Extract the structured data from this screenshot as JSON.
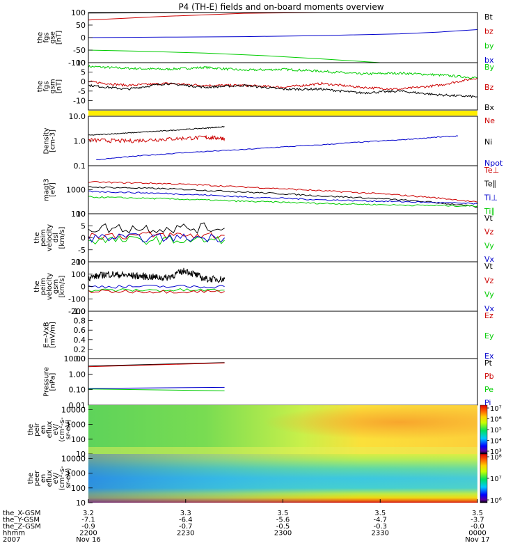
{
  "title": "P4 (TH-E) fields and on-board moments overview",
  "chart_data": {
    "type": "line",
    "title": "P4 (TH-E) fields and on-board moments overview",
    "xaxis": {
      "rows": [
        {
          "label": "the_X-GSM",
          "values": [
            "3.2",
            "3.3",
            "3.5",
            "3.5",
            "3.5"
          ]
        },
        {
          "label": "the_Y-GSM",
          "values": [
            "-7.1",
            "-6.4",
            "-5.6",
            "-4.7",
            "-3.7"
          ]
        },
        {
          "label": "the_Z-GSM",
          "values": [
            "-0.9",
            "-0.7",
            "-0.5",
            "-0.3",
            "-0.0"
          ]
        },
        {
          "label": "hhmm",
          "values": [
            "2200",
            "2230",
            "2300",
            "2330",
            "0000"
          ]
        },
        {
          "label": "2007",
          "values": [
            "Nov 16",
            "",
            "",
            "",
            "Nov 17"
          ]
        }
      ]
    },
    "panels": [
      {
        "id": "fgs_gse",
        "ylabel": [
          "the",
          "fgs",
          "gse",
          "[nT]"
        ],
        "scale": "linear",
        "ylim": [
          -100,
          100
        ],
        "ticks": [
          "100",
          "50",
          "0",
          "-50",
          "-100"
        ],
        "legend": [
          {
            "name": "Bt",
            "color": "#000000"
          },
          {
            "name": "bz",
            "color": "#cc0000"
          },
          {
            "name": "by",
            "color": "#00cc00"
          },
          {
            "name": "bx",
            "color": "#0000cc"
          }
        ],
        "series": [
          {
            "name": "Bt",
            "color": "#000000",
            "x": [
              0,
              0.33
            ],
            "y": [
              98,
              105
            ]
          },
          {
            "name": "bz",
            "color": "#cc0000",
            "x": [
              0,
              0.2,
              0.4,
              0.6
            ],
            "y": [
              70,
              85,
              97,
              106
            ]
          },
          {
            "name": "by",
            "color": "#00cc00",
            "x": [
              0,
              0.15,
              0.3,
              0.45,
              0.6,
              0.75
            ],
            "y": [
              -50,
              -55,
              -62,
              -72,
              -85,
              -101
            ]
          },
          {
            "name": "bx",
            "color": "#0000cc",
            "x": [
              0,
              0.2,
              0.4,
              0.6,
              0.8,
              0.9,
              1.0
            ],
            "y": [
              0,
              2,
              4,
              8,
              15,
              22,
              32
            ]
          }
        ]
      },
      {
        "id": "fgs_gsm",
        "ylabel": [
          "the",
          "fgs",
          "gsm",
          "[nT]"
        ],
        "scale": "linear",
        "ylim": [
          -15,
          10
        ],
        "ticks": [
          "10",
          "5",
          "0",
          "-5",
          "-10"
        ],
        "legend": [
          {
            "name": "By",
            "color": "#00cc00"
          },
          {
            "name": "Bz",
            "color": "#cc0000"
          },
          {
            "name": "Bx",
            "color": "#000000"
          }
        ],
        "series": [
          {
            "name": "By",
            "color": "#00cc00",
            "x": [
              0,
              0.1,
              0.2,
              0.3,
              0.4,
              0.5,
              0.6,
              0.7,
              0.8,
              0.9,
              1.0
            ],
            "y": [
              8,
              7,
              6.5,
              7.5,
              6,
              6.5,
              5.5,
              4,
              4.5,
              3.5,
              2
            ]
          },
          {
            "name": "Bz",
            "color": "#cc0000",
            "x": [
              0,
              0.1,
              0.2,
              0.3,
              0.4,
              0.5,
              0.6,
              0.7,
              0.8,
              0.9,
              1.0
            ],
            "y": [
              0,
              -2,
              -1,
              -2,
              -2,
              -3,
              -1,
              -3,
              -4,
              -2,
              2
            ]
          },
          {
            "name": "Bx",
            "color": "#000000",
            "x": [
              0,
              0.1,
              0.2,
              0.3,
              0.4,
              0.5,
              0.6,
              0.7,
              0.8,
              0.9,
              1.0
            ],
            "y": [
              -2,
              -4,
              -1,
              -3,
              -2,
              -4,
              -4,
              -6,
              -5,
              -7,
              -8
            ]
          }
        ]
      },
      {
        "id": "density",
        "ylabel": [
          "Density",
          "[cm-3]"
        ],
        "scale": "log",
        "ylim": [
          0.1,
          10
        ],
        "ticks": [
          "10.0",
          "1.0",
          "0.1"
        ],
        "legend": [
          {
            "name": "Ne",
            "color": "#cc0000"
          },
          {
            "name": "Ni",
            "color": "#000000"
          },
          {
            "name": "Npot",
            "color": "#0000cc"
          }
        ],
        "series": [
          {
            "name": "Ni",
            "color": "#000000",
            "x": [
              0,
              0.1,
              0.2,
              0.3,
              0.35
            ],
            "y": [
              1.7,
              2.1,
              2.6,
              3.3,
              3.8
            ]
          },
          {
            "name": "Ne",
            "color": "#cc0000",
            "x": [
              0,
              0.1,
              0.2,
              0.3,
              0.35
            ],
            "y": [
              1.1,
              1.0,
              1.2,
              1.4,
              1.3
            ]
          },
          {
            "name": "Npot",
            "color": "#0000cc",
            "x": [
              0.02,
              0.2,
              0.4,
              0.6,
              0.8,
              0.95
            ],
            "y": [
              0.17,
              0.3,
              0.45,
              0.7,
              1.1,
              1.6
            ]
          }
        ]
      },
      {
        "id": "temp",
        "ylabel": [
          "magt3",
          "[eV]"
        ],
        "scale": "log",
        "ylim": [
          100,
          10000
        ],
        "ticks": [
          "1000",
          "100"
        ],
        "legend": [
          {
            "name": "Te⊥",
            "color": "#cc0000"
          },
          {
            "name": "Te∥",
            "color": "#000000"
          },
          {
            "name": "Ti⊥",
            "color": "#0000cc"
          },
          {
            "name": "Ti∥",
            "color": "#00cc00"
          }
        ],
        "series": [
          {
            "name": "Te⊥",
            "color": "#cc0000",
            "x": [
              0,
              0.2,
              0.4,
              0.6,
              0.8,
              1.0
            ],
            "y": [
              2100,
              1800,
              1300,
              900,
              600,
              300
            ]
          },
          {
            "name": "Te∥",
            "color": "#000000",
            "x": [
              0,
              0.2,
              0.4,
              0.6,
              0.8,
              1.0
            ],
            "y": [
              1300,
              1100,
              800,
              550,
              380,
              190
            ]
          },
          {
            "name": "Ti⊥",
            "color": "#0000cc",
            "x": [
              0,
              0.2,
              0.4,
              0.6,
              0.8,
              1.0
            ],
            "y": [
              850,
              700,
              500,
              380,
              320,
              260
            ]
          },
          {
            "name": "Ti∥",
            "color": "#00cc00",
            "x": [
              0,
              0.2,
              0.4,
              0.6,
              0.8,
              1.0
            ],
            "y": [
              500,
              420,
              330,
              270,
              230,
              210
            ]
          }
        ]
      },
      {
        "id": "peim_dsl",
        "ylabel": [
          "the",
          "peim",
          "velocity",
          "dsl",
          "[km/s]"
        ],
        "scale": "linear",
        "ylim": [
          -10,
          10
        ],
        "ticks": [
          "10",
          "5",
          "0",
          "-5",
          "-10"
        ],
        "legend": [
          {
            "name": "Vt",
            "color": "#000000"
          },
          {
            "name": "Vz",
            "color": "#cc0000"
          },
          {
            "name": "Vy",
            "color": "#00cc00"
          },
          {
            "name": "Vx",
            "color": "#0000cc"
          }
        ],
        "series": [
          {
            "name": "Vt",
            "color": "#000000",
            "x": [
              0,
              0.35
            ],
            "y": [
              4,
              4
            ]
          },
          {
            "name": "Vz",
            "color": "#cc0000",
            "x": [
              0,
              0.35
            ],
            "y": [
              1,
              1
            ]
          },
          {
            "name": "Vy",
            "color": "#00cc00",
            "x": [
              0,
              0.35
            ],
            "y": [
              -1,
              -1
            ]
          },
          {
            "name": "Vx",
            "color": "#0000cc",
            "x": [
              0,
              0.35
            ],
            "y": [
              0,
              0
            ]
          }
        ]
      },
      {
        "id": "peim_gsm",
        "ylabel": [
          "the",
          "peim",
          "velocity",
          "gsm",
          "[km/s]"
        ],
        "scale": "linear",
        "ylim": [
          -200,
          200
        ],
        "ticks": [
          "200",
          "100",
          "0",
          "-100",
          "-200"
        ],
        "legend": [
          {
            "name": "Vt",
            "color": "#000000"
          },
          {
            "name": "Vz",
            "color": "#cc0000"
          },
          {
            "name": "Vy",
            "color": "#00cc00"
          },
          {
            "name": "Vx",
            "color": "#0000cc"
          }
        ],
        "series": [
          {
            "name": "Vt",
            "color": "#000000",
            "x": [
              0,
              0.05,
              0.1,
              0.15,
              0.2,
              0.25,
              0.3,
              0.35
            ],
            "y": [
              70,
              100,
              90,
              80,
              70,
              130,
              60,
              60
            ]
          },
          {
            "name": "Vx",
            "color": "#0000cc",
            "x": [
              0,
              0.35
            ],
            "y": [
              0,
              0
            ]
          },
          {
            "name": "Vy",
            "color": "#00cc00",
            "x": [
              0,
              0.35
            ],
            "y": [
              -30,
              -30
            ]
          },
          {
            "name": "Vz",
            "color": "#cc0000",
            "x": [
              0,
              0.35
            ],
            "y": [
              -40,
              -40
            ]
          }
        ]
      },
      {
        "id": "efield",
        "ylabel": [
          "E=-VxB",
          "[mV/m]"
        ],
        "scale": "linear",
        "ylim": [
          0,
          1
        ],
        "ticks": [
          "1.0",
          "0.8",
          "0.6",
          "0.4",
          "0.2",
          "0.0"
        ],
        "legend": [
          {
            "name": "Ez",
            "color": "#cc0000"
          },
          {
            "name": "Ey",
            "color": "#00cc00"
          },
          {
            "name": "Ex",
            "color": "#0000cc"
          }
        ],
        "series": []
      },
      {
        "id": "pressure",
        "ylabel": [
          "Pressure",
          "[nPa]"
        ],
        "scale": "log",
        "ylim": [
          0.01,
          10
        ],
        "ticks": [
          "10.00",
          "1.00",
          "0.10",
          "0.01"
        ],
        "legend": [
          {
            "name": "Pt",
            "color": "#000000"
          },
          {
            "name": "Pb",
            "color": "#cc0000"
          },
          {
            "name": "Pe",
            "color": "#00cc00"
          },
          {
            "name": "Pi",
            "color": "#0000cc"
          }
        ],
        "series": [
          {
            "name": "Pt",
            "color": "#000000",
            "x": [
              0,
              0.35
            ],
            "y": [
              3.3,
              5.5
            ]
          },
          {
            "name": "Pb",
            "color": "#cc0000",
            "x": [
              0,
              0.35
            ],
            "y": [
              3.0,
              5.2
            ]
          },
          {
            "name": "Pi",
            "color": "#0000cc",
            "x": [
              0,
              0.35
            ],
            "y": [
              0.12,
              0.14
            ]
          },
          {
            "name": "Pe",
            "color": "#00cc00",
            "x": [
              0,
              0.35
            ],
            "y": [
              0.11,
              0.085
            ]
          }
        ]
      },
      {
        "id": "peir_spec",
        "type": "heatmap",
        "ylabel": [
          "the",
          "peir",
          "en",
          "eflux",
          "eV/",
          "(cm^2-s-",
          "sr-eV)"
        ],
        "scale": "log",
        "ylim": [
          10,
          20000
        ],
        "ticks": [
          "10000",
          "1000",
          "100",
          "10"
        ],
        "colorbar": {
          "ticks": [
            "10^7",
            "10^6",
            "10^5",
            "10^4",
            "10^3"
          ]
        }
      },
      {
        "id": "peer_spec",
        "type": "heatmap",
        "ylabel": [
          "the",
          "peer",
          "en",
          "eflux",
          "eV/",
          "(cm^2-s-",
          "sr-eV)"
        ],
        "scale": "log",
        "ylim": [
          10,
          20000
        ],
        "ticks": [
          "10000",
          "1000",
          "100",
          "10"
        ],
        "colorbar": {
          "ticks": [
            "10^8",
            "10^7",
            "10^6"
          ]
        }
      }
    ]
  }
}
